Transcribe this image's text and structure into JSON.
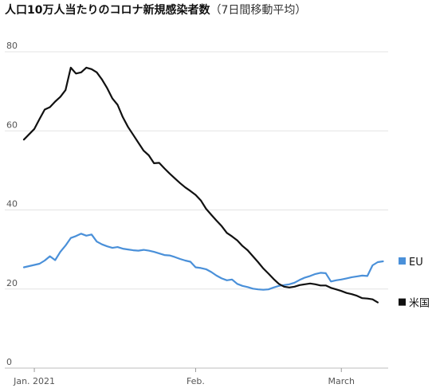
{
  "title": "人口10万人当たりのコロナ新規感染者数",
  "subtitle": "（7日間移動平均）",
  "chart_data": {
    "type": "line",
    "title": "人口10万人当たりのコロナ新規感染者数",
    "subtitle": "（7日間移動平均）",
    "xlabel": "",
    "ylabel": "",
    "ylim": [
      0,
      80
    ],
    "yticks": [
      0,
      20,
      40,
      60,
      80
    ],
    "xlim": [
      "2020-12-30",
      "2021-03-10"
    ],
    "xticks": [
      {
        "date": "2021-01-01",
        "label": "Jan. 2021"
      },
      {
        "date": "2021-02-01",
        "label": "Feb."
      },
      {
        "date": "2021-03-01",
        "label": "March"
      }
    ],
    "grid": "horizontal",
    "legend_position": "right",
    "series": [
      {
        "name": "EU",
        "color": "#4a90d9",
        "points": [
          [
            "2020-12-30",
            25.5
          ],
          [
            "2021-01-01",
            26.1
          ],
          [
            "2021-01-02",
            26.4
          ],
          [
            "2021-01-03",
            27.2
          ],
          [
            "2021-01-04",
            28.3
          ],
          [
            "2021-01-05",
            27.3
          ],
          [
            "2021-01-06",
            29.4
          ],
          [
            "2021-01-07",
            31.0
          ],
          [
            "2021-01-08",
            32.9
          ],
          [
            "2021-01-09",
            33.4
          ],
          [
            "2021-01-10",
            34.0
          ],
          [
            "2021-01-11",
            33.5
          ],
          [
            "2021-01-12",
            33.8
          ],
          [
            "2021-01-13",
            32.0
          ],
          [
            "2021-01-14",
            31.3
          ],
          [
            "2021-01-15",
            30.8
          ],
          [
            "2021-01-16",
            30.4
          ],
          [
            "2021-01-17",
            30.6
          ],
          [
            "2021-01-18",
            30.2
          ],
          [
            "2021-01-19",
            30.0
          ],
          [
            "2021-01-20",
            29.8
          ],
          [
            "2021-01-21",
            29.7
          ],
          [
            "2021-01-22",
            29.9
          ],
          [
            "2021-01-23",
            29.7
          ],
          [
            "2021-01-24",
            29.4
          ],
          [
            "2021-01-25",
            29.0
          ],
          [
            "2021-01-26",
            28.6
          ],
          [
            "2021-01-27",
            28.5
          ],
          [
            "2021-01-28",
            28.1
          ],
          [
            "2021-01-29",
            27.6
          ],
          [
            "2021-01-30",
            27.2
          ],
          [
            "2021-01-31",
            26.9
          ],
          [
            "2021-02-01",
            25.5
          ],
          [
            "2021-02-02",
            25.3
          ],
          [
            "2021-02-03",
            25.0
          ],
          [
            "2021-02-04",
            24.3
          ],
          [
            "2021-02-05",
            23.4
          ],
          [
            "2021-02-06",
            22.7
          ],
          [
            "2021-02-07",
            22.2
          ],
          [
            "2021-02-08",
            22.4
          ],
          [
            "2021-02-09",
            21.3
          ],
          [
            "2021-02-10",
            20.8
          ],
          [
            "2021-02-11",
            20.5
          ],
          [
            "2021-02-12",
            20.1
          ],
          [
            "2021-02-13",
            19.9
          ],
          [
            "2021-02-14",
            19.8
          ],
          [
            "2021-02-15",
            19.9
          ],
          [
            "2021-02-16",
            20.4
          ],
          [
            "2021-02-17",
            20.8
          ],
          [
            "2021-02-18",
            21.0
          ],
          [
            "2021-02-19",
            21.2
          ],
          [
            "2021-02-20",
            21.6
          ],
          [
            "2021-02-21",
            22.3
          ],
          [
            "2021-02-22",
            22.9
          ],
          [
            "2021-02-23",
            23.3
          ],
          [
            "2021-02-24",
            23.8
          ],
          [
            "2021-02-25",
            24.1
          ],
          [
            "2021-02-26",
            24.0
          ],
          [
            "2021-02-27",
            21.9
          ],
          [
            "2021-02-28",
            22.2
          ],
          [
            "2021-03-01",
            22.4
          ],
          [
            "2021-03-02",
            22.7
          ],
          [
            "2021-03-03",
            23.0
          ],
          [
            "2021-03-04",
            23.2
          ],
          [
            "2021-03-05",
            23.4
          ],
          [
            "2021-03-06",
            23.3
          ],
          [
            "2021-03-07",
            26.0
          ],
          [
            "2021-03-08",
            26.8
          ],
          [
            "2021-03-09",
            27.0
          ]
        ]
      },
      {
        "name": "米国",
        "color": "#111111",
        "points": [
          [
            "2020-12-30",
            57.8
          ],
          [
            "2021-01-01",
            60.5
          ],
          [
            "2021-01-02",
            63.0
          ],
          [
            "2021-01-03",
            65.4
          ],
          [
            "2021-01-04",
            66.0
          ],
          [
            "2021-01-05",
            67.4
          ],
          [
            "2021-01-06",
            68.6
          ],
          [
            "2021-01-07",
            70.3
          ],
          [
            "2021-01-08",
            76.0
          ],
          [
            "2021-01-09",
            74.5
          ],
          [
            "2021-01-10",
            74.8
          ],
          [
            "2021-01-11",
            76.0
          ],
          [
            "2021-01-12",
            75.6
          ],
          [
            "2021-01-13",
            74.8
          ],
          [
            "2021-01-14",
            73.0
          ],
          [
            "2021-01-15",
            70.8
          ],
          [
            "2021-01-16",
            68.2
          ],
          [
            "2021-01-17",
            66.6
          ],
          [
            "2021-01-18",
            63.5
          ],
          [
            "2021-01-19",
            61.0
          ],
          [
            "2021-01-20",
            59.0
          ],
          [
            "2021-01-21",
            57.0
          ],
          [
            "2021-01-22",
            55.0
          ],
          [
            "2021-01-23",
            53.8
          ],
          [
            "2021-01-24",
            51.8
          ],
          [
            "2021-01-25",
            51.9
          ],
          [
            "2021-01-26",
            50.5
          ],
          [
            "2021-01-27",
            49.2
          ],
          [
            "2021-01-28",
            48.0
          ],
          [
            "2021-01-29",
            46.8
          ],
          [
            "2021-01-30",
            45.7
          ],
          [
            "2021-01-31",
            44.8
          ],
          [
            "2021-02-01",
            43.8
          ],
          [
            "2021-02-02",
            42.4
          ],
          [
            "2021-02-03",
            40.3
          ],
          [
            "2021-02-04",
            38.8
          ],
          [
            "2021-02-05",
            37.3
          ],
          [
            "2021-02-06",
            35.9
          ],
          [
            "2021-02-07",
            34.2
          ],
          [
            "2021-02-08",
            33.3
          ],
          [
            "2021-02-09",
            32.3
          ],
          [
            "2021-02-10",
            30.9
          ],
          [
            "2021-02-11",
            29.8
          ],
          [
            "2021-02-12",
            28.3
          ],
          [
            "2021-02-13",
            26.8
          ],
          [
            "2021-02-14",
            25.2
          ],
          [
            "2021-02-15",
            23.9
          ],
          [
            "2021-02-16",
            22.5
          ],
          [
            "2021-02-17",
            21.3
          ],
          [
            "2021-02-18",
            20.6
          ],
          [
            "2021-02-19",
            20.4
          ],
          [
            "2021-02-20",
            20.6
          ],
          [
            "2021-02-21",
            21.0
          ],
          [
            "2021-02-22",
            21.2
          ],
          [
            "2021-02-23",
            21.4
          ],
          [
            "2021-02-24",
            21.2
          ],
          [
            "2021-02-25",
            20.9
          ],
          [
            "2021-02-26",
            20.9
          ],
          [
            "2021-02-27",
            20.3
          ],
          [
            "2021-02-28",
            19.9
          ],
          [
            "2021-03-01",
            19.5
          ],
          [
            "2021-03-02",
            19.0
          ],
          [
            "2021-03-03",
            18.7
          ],
          [
            "2021-03-04",
            18.3
          ],
          [
            "2021-03-05",
            17.7
          ],
          [
            "2021-03-06",
            17.6
          ],
          [
            "2021-03-07",
            17.4
          ],
          [
            "2021-03-08",
            16.6
          ]
        ]
      }
    ]
  }
}
